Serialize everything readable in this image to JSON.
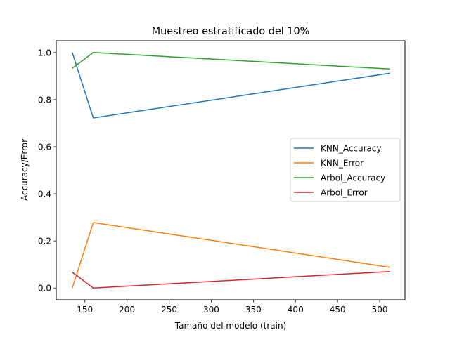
{
  "chart_data": {
    "type": "line",
    "title": "Muestreo estratificado del 10%",
    "xlabel": "Tamaño del modelo (train)",
    "ylabel": "Accuracy/Error",
    "xlim": [
      116,
      530
    ],
    "ylim": [
      -0.05,
      1.05
    ],
    "xticks": [
      150,
      200,
      250,
      300,
      350,
      400,
      450,
      500
    ],
    "yticks": [
      0.0,
      0.2,
      0.4,
      0.6,
      0.8,
      1.0
    ],
    "grid": false,
    "legend_position": "center-right",
    "x": [
      135,
      160,
      512
    ],
    "series": [
      {
        "name": "KNN_Accuracy",
        "color": "#1f77b4",
        "values": [
          1.0,
          0.722,
          0.912
        ]
      },
      {
        "name": "KNN_Error",
        "color": "#ff7f0e",
        "values": [
          0.0,
          0.278,
          0.088
        ]
      },
      {
        "name": "Arbol_Accuracy",
        "color": "#2ca02c",
        "values": [
          0.933,
          1.0,
          0.93
        ]
      },
      {
        "name": "Arbol_Error",
        "color": "#d62728",
        "values": [
          0.067,
          0.0,
          0.07
        ]
      }
    ]
  }
}
